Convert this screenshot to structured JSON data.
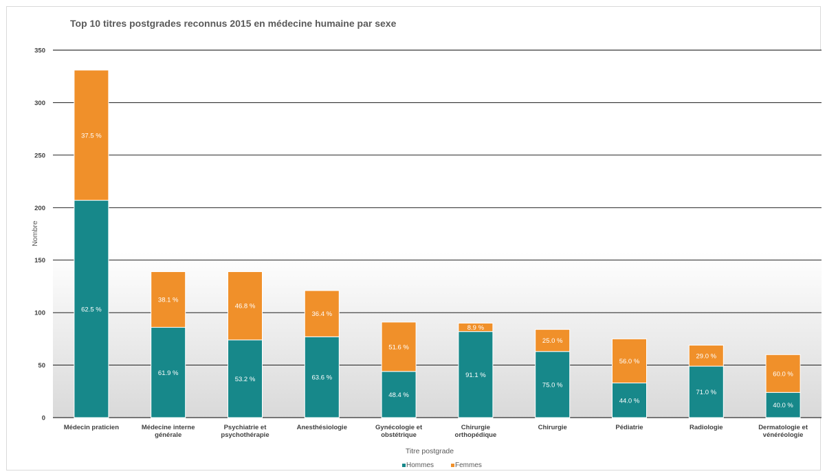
{
  "chart_data": {
    "type": "bar",
    "stacked": true,
    "title": "Top 10 titres postgrades reconnus 2015 en médecine humaine par sexe",
    "xlabel": "Titre postgrade",
    "ylabel": "Nombre",
    "ylim": [
      0,
      350
    ],
    "yticks": [
      0,
      50,
      100,
      150,
      200,
      250,
      300,
      350
    ],
    "grid": true,
    "legend_position": "bottom",
    "categories": [
      [
        "Médecin praticien"
      ],
      [
        "Médecine interne",
        "générale"
      ],
      [
        "Psychiatrie et",
        "psychothérapie"
      ],
      [
        "Anesthésiologie"
      ],
      [
        "Gynécologie et",
        "obstétrique"
      ],
      [
        "Chirurgie",
        "orthopédique"
      ],
      [
        "Chirurgie"
      ],
      [
        "Pédiatrie"
      ],
      [
        "Radiologie"
      ],
      [
        "Dermatologie et",
        "vénéréologie"
      ]
    ],
    "series": [
      {
        "name": "Hommes",
        "color": "#17888a",
        "values": [
          207,
          86,
          74,
          77,
          44,
          82,
          63,
          33,
          49,
          24
        ],
        "labels": [
          "62.5 %",
          "61.9 %",
          "53.2 %",
          "63.6 %",
          "48.4 %",
          "91.1 %",
          "75.0 %",
          "44.0 %",
          "71.0 %",
          "40.0 %"
        ]
      },
      {
        "name": "Femmes",
        "color": "#f0902a",
        "values": [
          124,
          53,
          65,
          44,
          47,
          8,
          21,
          42,
          20,
          36
        ],
        "labels": [
          "37.5 %",
          "38.1 %",
          "46.8 %",
          "36.4 %",
          "51.6 %",
          "8.9 %",
          "25.0 %",
          "56.0 %",
          "29.0 %",
          "60.0 %"
        ]
      }
    ]
  }
}
